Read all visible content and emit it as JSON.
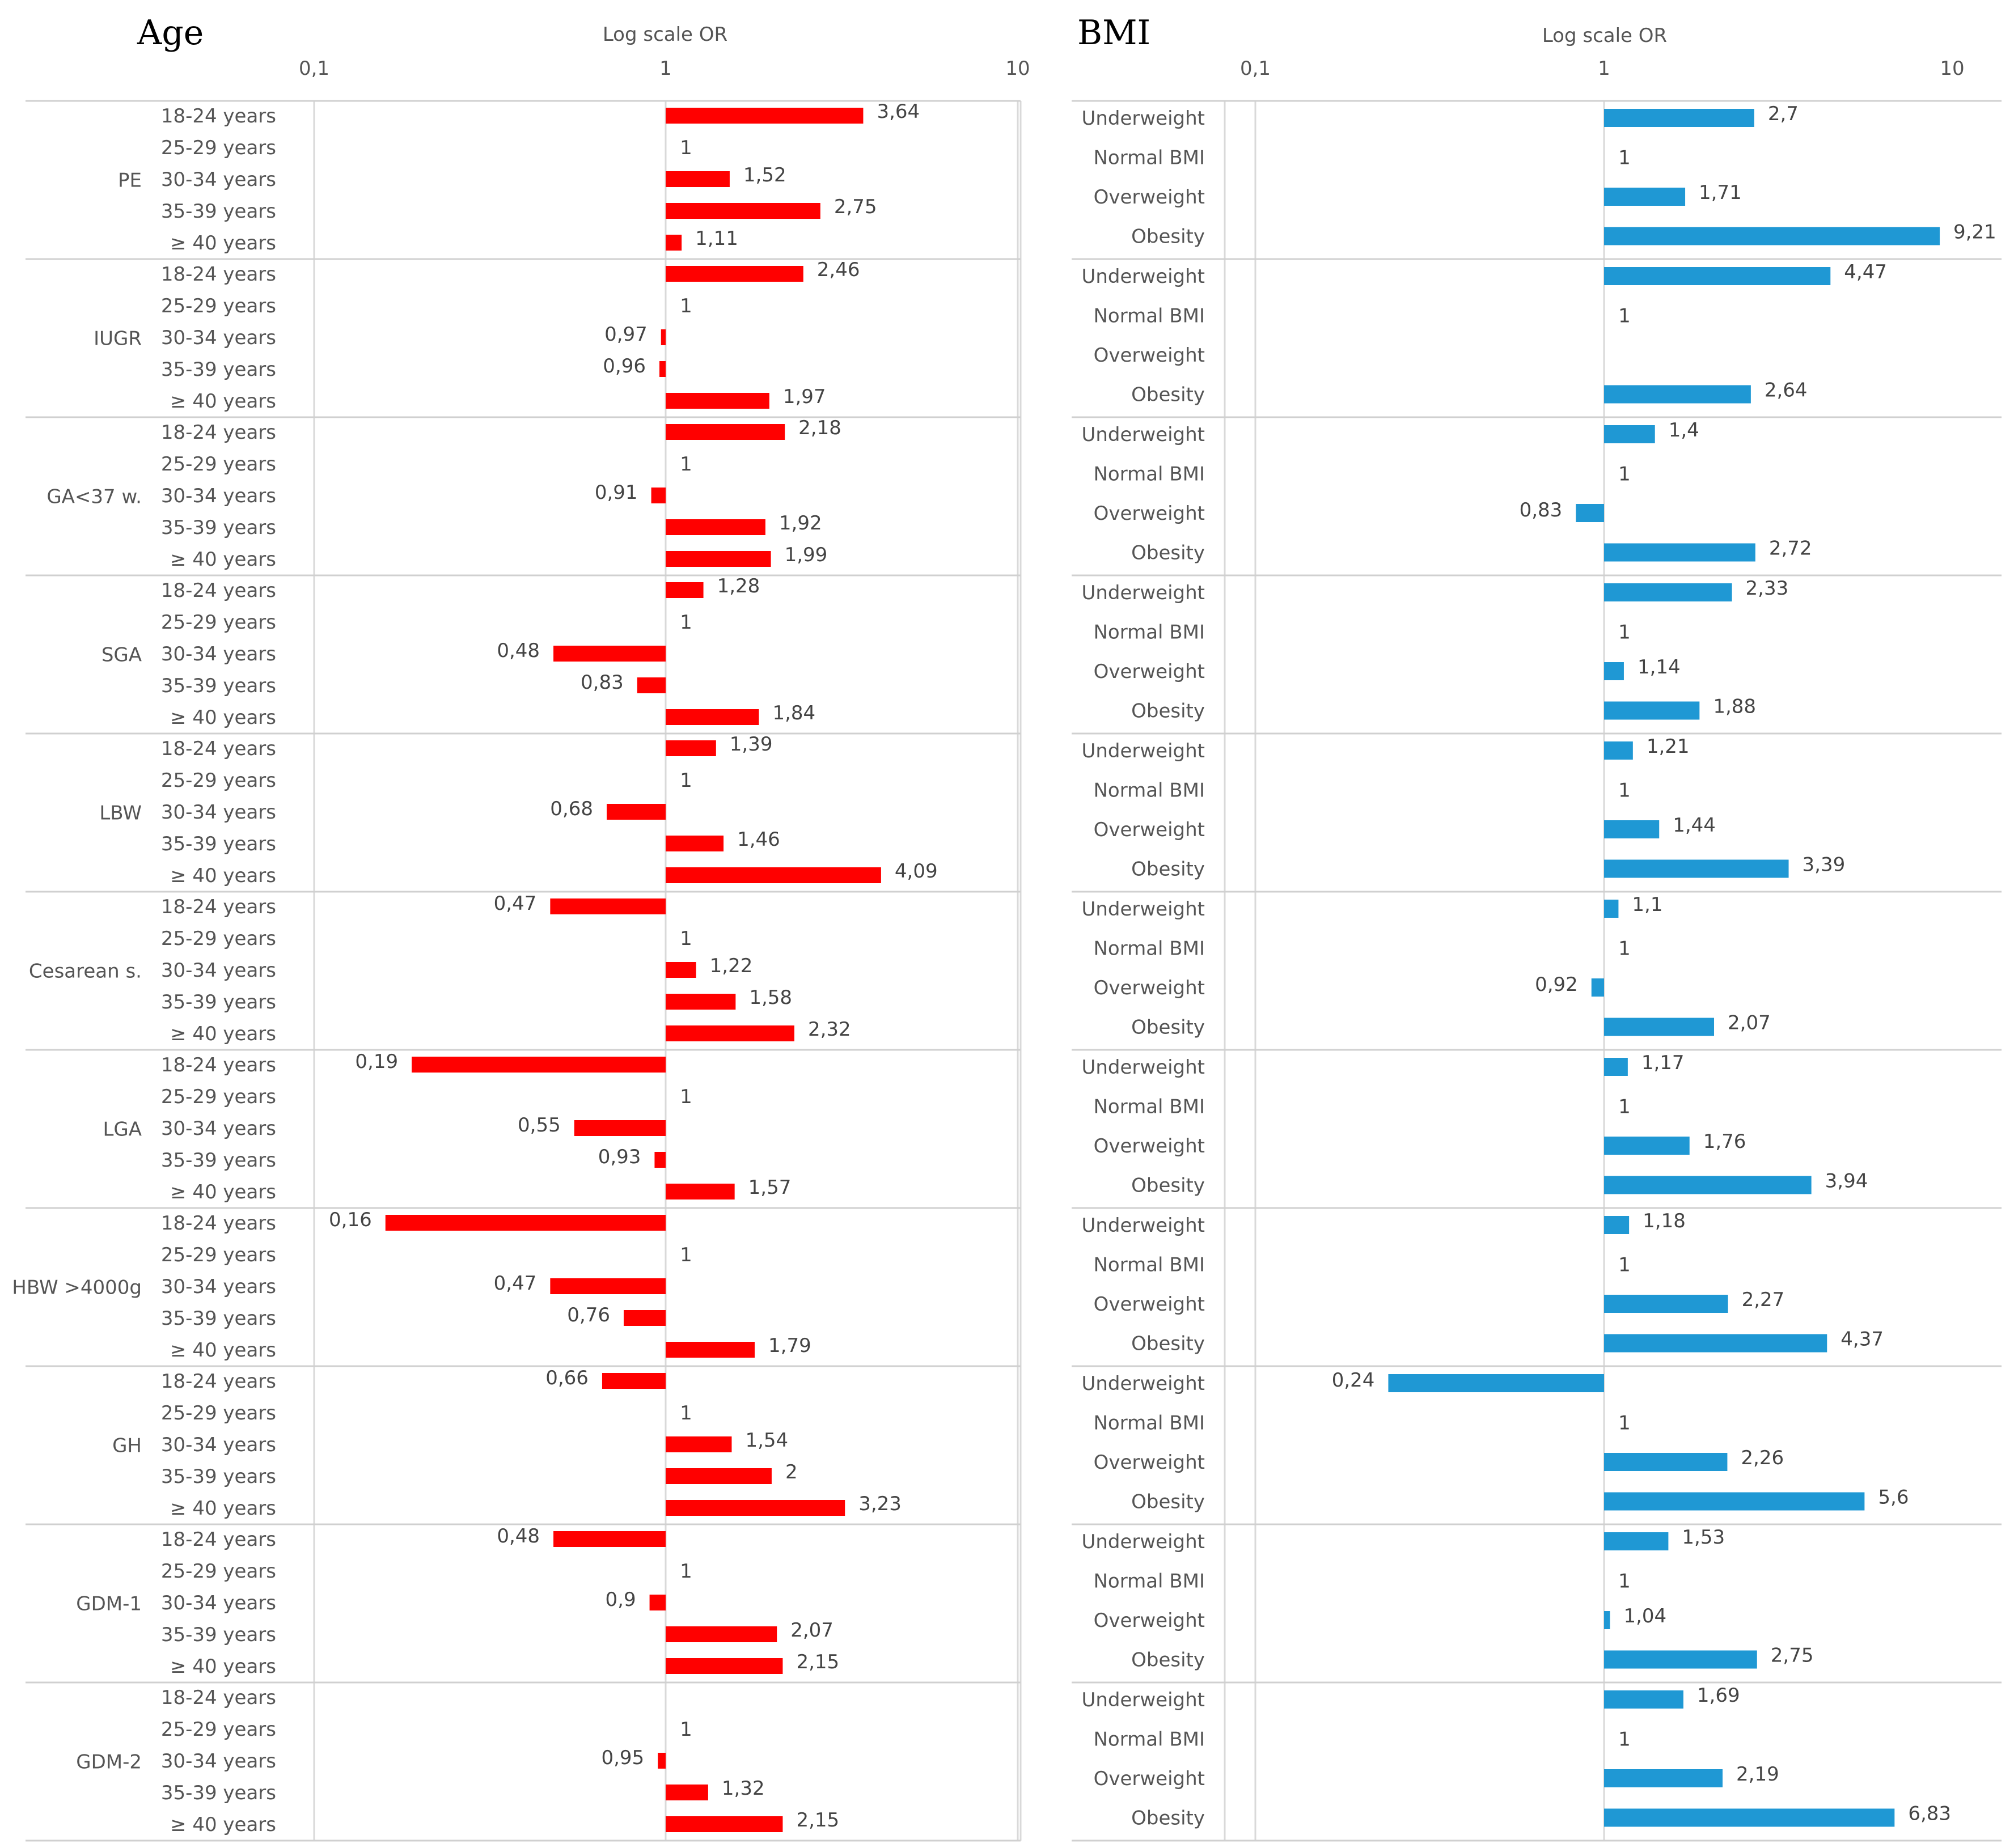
{
  "chart_data": [
    {
      "type": "bar",
      "orientation": "horizontal",
      "title": "Age",
      "xlabel": "Log scale OR",
      "xscale": "log",
      "xlim": [
        0.1,
        10
      ],
      "xticks": [
        "0,1",
        "1",
        "10"
      ],
      "color": "#ff0000",
      "categories": [
        "18-24 years",
        "25-29 years",
        "30-34 years",
        "35-39 years",
        "≥ 40 years"
      ],
      "groups": [
        {
          "name": "PE",
          "values": [
            3.64,
            1,
            1.52,
            2.75,
            1.11
          ],
          "labels": [
            "3,64",
            "1",
            "1,52",
            "2,75",
            "1,11"
          ]
        },
        {
          "name": "IUGR",
          "values": [
            2.46,
            1,
            0.97,
            0.96,
            1.97
          ],
          "labels": [
            "2,46",
            "1",
            "0,97",
            "0,96",
            "1,97"
          ]
        },
        {
          "name": "GA<37 w.",
          "values": [
            2.18,
            1,
            0.91,
            1.92,
            1.99
          ],
          "labels": [
            "2,18",
            "1",
            "0,91",
            "1,92",
            "1,99"
          ]
        },
        {
          "name": "SGA",
          "values": [
            1.28,
            1,
            0.48,
            0.83,
            1.84
          ],
          "labels": [
            "1,28",
            "1",
            "0,48",
            "0,83",
            "1,84"
          ]
        },
        {
          "name": "LBW",
          "values": [
            1.39,
            1,
            0.68,
            1.46,
            4.09
          ],
          "labels": [
            "1,39",
            "1",
            "0,68",
            "1,46",
            "4,09"
          ]
        },
        {
          "name": "Cesarean s.",
          "values": [
            0.47,
            1,
            1.22,
            1.58,
            2.32
          ],
          "labels": [
            "0,47",
            "1",
            "1,22",
            "1,58",
            "2,32"
          ]
        },
        {
          "name": "LGA",
          "values": [
            0.19,
            1,
            0.55,
            0.93,
            1.57
          ],
          "labels": [
            "0,19",
            "1",
            "0,55",
            "0,93",
            "1,57"
          ]
        },
        {
          "name": "HBW >4000g",
          "values": [
            0.16,
            1,
            0.47,
            0.76,
            1.79
          ],
          "labels": [
            "0,16",
            "1",
            "0,47",
            "0,76",
            "1,79"
          ]
        },
        {
          "name": "GH",
          "values": [
            0.66,
            1,
            1.54,
            2,
            3.23
          ],
          "labels": [
            "0,66",
            "1",
            "1,54",
            "2",
            "3,23"
          ]
        },
        {
          "name": "GDM-1",
          "values": [
            0.48,
            1,
            0.9,
            2.07,
            2.15
          ],
          "labels": [
            "0,48",
            "1",
            "0,9",
            "2,07",
            "2,15"
          ]
        },
        {
          "name": "GDM-2",
          "values": [
            null,
            1,
            0.95,
            1.32,
            2.15
          ],
          "labels": [
            "",
            "1",
            "0,95",
            "1,32",
            "2,15"
          ]
        }
      ]
    },
    {
      "type": "bar",
      "orientation": "horizontal",
      "title": "BMI",
      "xlabel": "Log scale OR",
      "xscale": "log",
      "xlim": [
        0.1,
        10
      ],
      "xticks": [
        "0,1",
        "1",
        "10"
      ],
      "color": "#1f98d4",
      "categories": [
        "Underweight",
        "Normal BMI",
        "Overweight",
        "Obesity"
      ],
      "groups": [
        {
          "name": "PE",
          "values": [
            2.7,
            1,
            1.71,
            9.21
          ],
          "labels": [
            "2,7",
            "1",
            "1,71",
            "9,21"
          ]
        },
        {
          "name": "IUGR",
          "values": [
            4.47,
            1,
            null,
            2.64
          ],
          "labels": [
            "4,47",
            "1",
            "",
            "2,64"
          ]
        },
        {
          "name": "GA<37 w.",
          "values": [
            1.4,
            1,
            0.83,
            2.72
          ],
          "labels": [
            "1,4",
            "1",
            "0,83",
            "2,72"
          ]
        },
        {
          "name": "SGA",
          "values": [
            2.33,
            1,
            1.14,
            1.88
          ],
          "labels": [
            "2,33",
            "1",
            "1,14",
            "1,88"
          ]
        },
        {
          "name": "LBW",
          "values": [
            1.21,
            1,
            1.44,
            3.39
          ],
          "labels": [
            "1,21",
            "1",
            "1,44",
            "3,39"
          ]
        },
        {
          "name": "Cesarean s.",
          "values": [
            1.1,
            1,
            0.92,
            2.07
          ],
          "labels": [
            "1,1",
            "1",
            "0,92",
            "2,07"
          ]
        },
        {
          "name": "LGA",
          "values": [
            1.17,
            1,
            1.76,
            3.94
          ],
          "labels": [
            "1,17",
            "1",
            "1,76",
            "3,94"
          ]
        },
        {
          "name": "HBW >4000g",
          "values": [
            1.18,
            1,
            2.27,
            4.37
          ],
          "labels": [
            "1,18",
            "1",
            "2,27",
            "4,37"
          ]
        },
        {
          "name": "GH",
          "values": [
            0.24,
            1,
            2.26,
            5.6
          ],
          "labels": [
            "0,24",
            "1",
            "2,26",
            "5,6"
          ]
        },
        {
          "name": "GDM-1",
          "values": [
            1.53,
            1,
            1.04,
            2.75
          ],
          "labels": [
            "1,53",
            "1",
            "1,04",
            "2,75"
          ]
        },
        {
          "name": "GDM-2",
          "values": [
            1.69,
            1,
            2.19,
            6.83
          ],
          "labels": [
            "1,69",
            "1",
            "2,19",
            "6,83"
          ]
        }
      ]
    }
  ]
}
